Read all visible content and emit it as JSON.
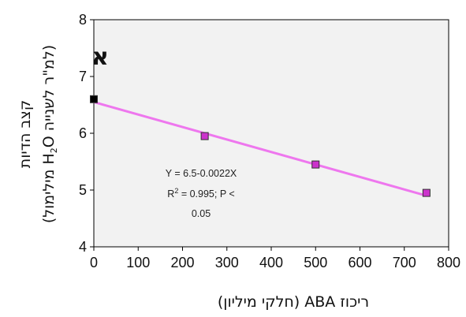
{
  "chart_data": {
    "type": "scatter",
    "panel_label": "א",
    "xlabel": "ריכוז ABA (חלקי מיליון)",
    "ylabel_line1": "קצב הדיות",
    "ylabel_line2_prefix": "(מילימול ",
    "ylabel_line2_h": "H",
    "ylabel_line2_sub": "2",
    "ylabel_line2_o": "O",
    "ylabel_line2_suffix": " למ\"ר לשנייה)",
    "xlim": [
      0,
      800
    ],
    "ylim": [
      4,
      8
    ],
    "xticks": [
      "0",
      "100",
      "200",
      "300",
      "400",
      "500",
      "600",
      "700",
      "800"
    ],
    "yticks": [
      "4",
      "5",
      "6",
      "7",
      "8"
    ],
    "series": [
      {
        "points": [
          {
            "x": 0,
            "y": 6.6,
            "color": "#000000"
          },
          {
            "x": 250,
            "y": 5.95,
            "color": "#cc33cc"
          },
          {
            "x": 500,
            "y": 5.45,
            "color": "#cc33cc"
          },
          {
            "x": 750,
            "y": 4.95,
            "color": "#cc33cc"
          }
        ]
      }
    ],
    "trendline": {
      "intercept": 6.55,
      "slope": -0.0022,
      "x_start": 0,
      "x_end": 750,
      "color": "#ee77ee"
    },
    "annotation": {
      "line1": "Y = 6.5-0.0022X",
      "line2_r": "R",
      "line2_sup": "2",
      "line2_rest": " = 0.995; P <",
      "line3": "0.05"
    },
    "grid": false,
    "plot_background": "#f2f2f2",
    "outer_background": "#ffffff"
  }
}
